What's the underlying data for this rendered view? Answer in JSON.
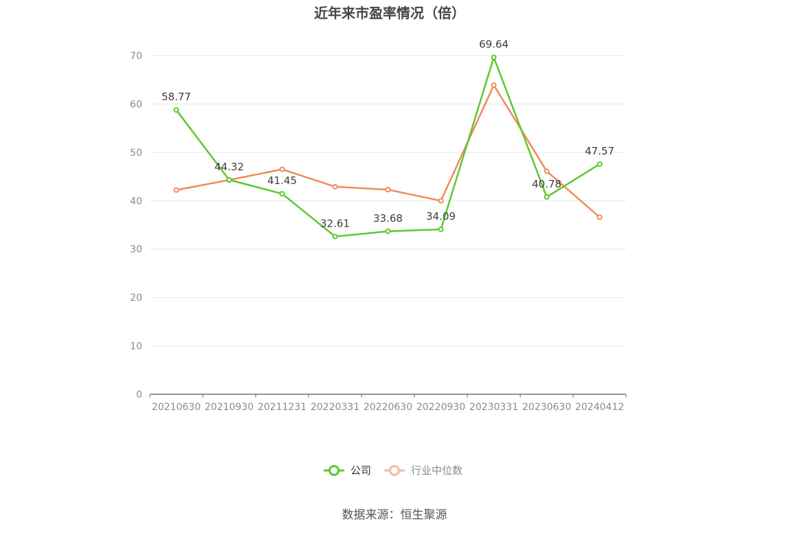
{
  "chart_data": {
    "type": "line",
    "title": "近年来市盈率情况（倍）",
    "categories": [
      "20210630",
      "20210930",
      "20211231",
      "20220331",
      "20220630",
      "20220930",
      "20230331",
      "20230630",
      "20240412"
    ],
    "series": [
      {
        "name": "公司",
        "color": "#5cc82e",
        "values": [
          58.77,
          44.32,
          41.45,
          32.61,
          33.68,
          34.09,
          69.64,
          40.78,
          47.57
        ],
        "labels": [
          "58.77",
          "44.32",
          "41.45",
          "32.61",
          "33.68",
          "34.09",
          "69.64",
          "40.78",
          "47.57"
        ]
      },
      {
        "name": "行业中位数",
        "color": "#f08a5b",
        "values": [
          42.2,
          44.3,
          46.5,
          42.9,
          42.3,
          40.0,
          63.9,
          46.1,
          36.6
        ]
      }
    ],
    "ylim": [
      0,
      70
    ],
    "yticks": [
      "0",
      "10",
      "20",
      "30",
      "40",
      "50",
      "60",
      "70"
    ],
    "grid": true,
    "legend_position": "bottom",
    "legend_inactive_color": "#f6b9a1"
  },
  "source_text": "数据来源：恒生聚源"
}
